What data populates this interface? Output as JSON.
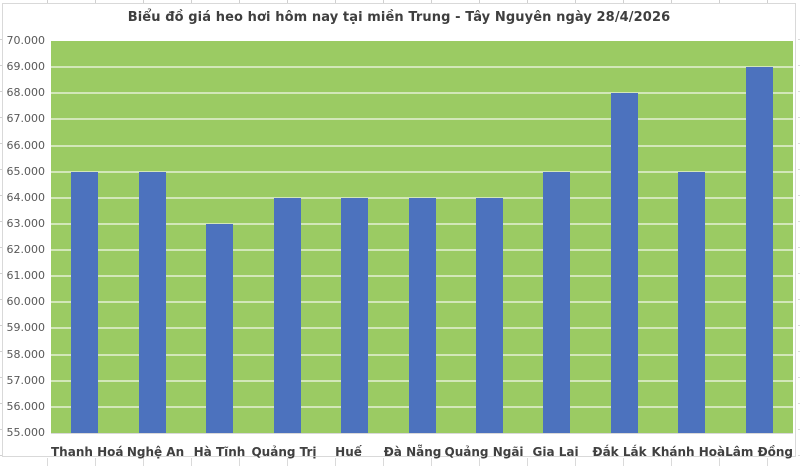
{
  "chart": {
    "title": "Biểu đồ giá heo hơi hôm nay tại miền Trung - Tây Nguyên ngày 28/4/2026"
  },
  "chart_data": {
    "type": "bar",
    "title": "Biểu đồ giá heo hơi hôm nay tại miền Trung - Tây Nguyên ngày 28/4/2026",
    "categories": [
      "Thanh Hoá",
      "Nghệ An",
      "Hà Tĩnh",
      "Quảng Trị",
      "Huế",
      "Đà Nẵng",
      "Quảng Ngãi",
      "Gia Lai",
      "Đắk Lắk",
      "Khánh Hoà",
      "Lâm Đồng"
    ],
    "values": [
      65000,
      65000,
      63000,
      64000,
      64000,
      64000,
      64000,
      65000,
      68000,
      65000,
      69000
    ],
    "xlabel": "",
    "ylabel": "",
    "ylim": [
      55000,
      70000
    ],
    "ytick_step": 1000,
    "ytick_labels": [
      "55.000",
      "56.000",
      "57.000",
      "58.000",
      "59.000",
      "60.000",
      "61.000",
      "62.000",
      "63.000",
      "64.000",
      "65.000",
      "66.000",
      "67.000",
      "68.000",
      "69.000",
      "70.000"
    ],
    "grid": true,
    "legend": "none",
    "colors": {
      "bar": "#4c72be",
      "plot_background": "#9bcb63",
      "gridline": "rgba(255,255,255,0.55)",
      "title_text": "#3f3f3f",
      "axis_text": "#595959",
      "category_text": "#404040",
      "chart_border": "#d9d9d9",
      "chart_background": "#ffffff"
    }
  }
}
